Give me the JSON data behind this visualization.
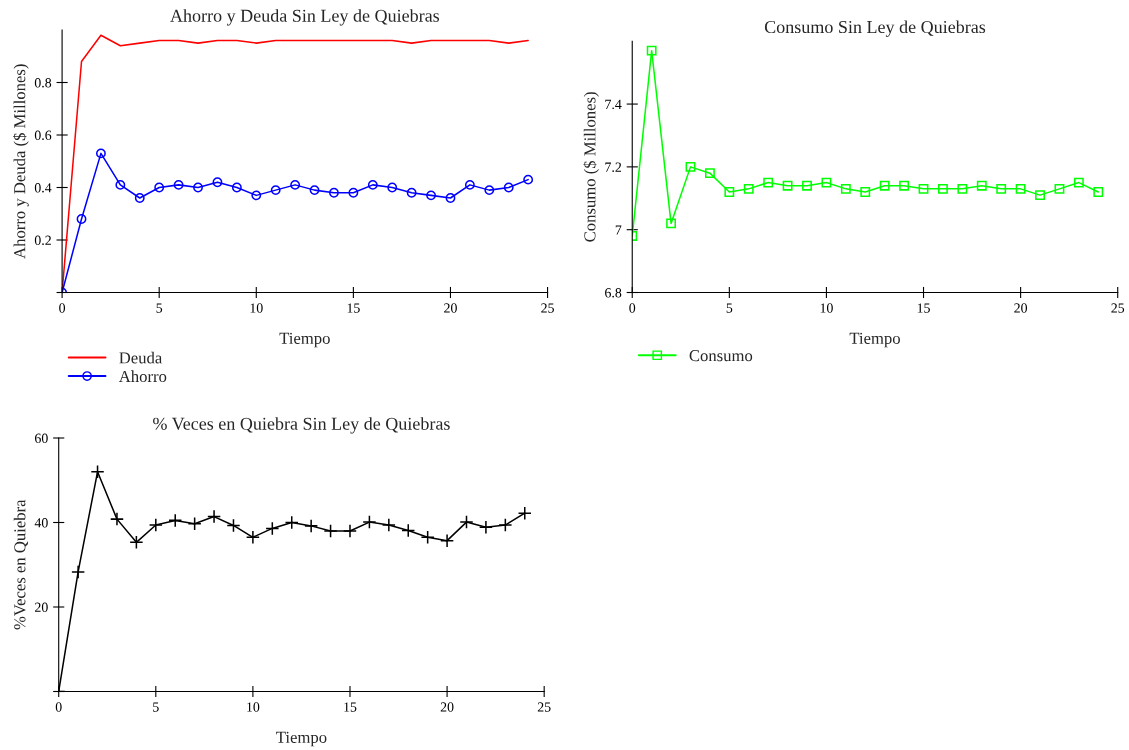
{
  "chart_data": [
    {
      "type": "line",
      "title": "Ahorro y Deuda Sin Ley de Quiebras",
      "xlabel": "Tiempo",
      "ylabel": "Ahorro y Deuda ($ Millones)",
      "x": [
        0,
        1,
        2,
        3,
        4,
        5,
        6,
        7,
        8,
        9,
        10,
        11,
        12,
        13,
        14,
        15,
        16,
        17,
        18,
        19,
        20,
        21,
        22,
        23,
        24
      ],
      "series": [
        {
          "name": "Deuda",
          "color": "#ff0000",
          "marker": "none",
          "values": [
            0,
            0.88,
            0.98,
            0.94,
            0.95,
            0.96,
            0.96,
            0.95,
            0.96,
            0.96,
            0.95,
            0.96,
            0.96,
            0.96,
            0.96,
            0.96,
            0.96,
            0.96,
            0.95,
            0.96,
            0.96,
            0.96,
            0.96,
            0.95,
            0.96
          ]
        },
        {
          "name": "Ahorro",
          "color": "#0000ff",
          "marker": "circle",
          "values": [
            0,
            0.28,
            0.53,
            0.41,
            0.36,
            0.4,
            0.41,
            0.4,
            0.42,
            0.4,
            0.37,
            0.39,
            0.41,
            0.39,
            0.38,
            0.38,
            0.41,
            0.4,
            0.38,
            0.37,
            0.36,
            0.41,
            0.39,
            0.4,
            0.43
          ]
        }
      ],
      "xlim": [
        0,
        25
      ],
      "xticks": [
        0,
        5,
        10,
        15,
        20,
        25
      ],
      "ylim": [
        0,
        1.0
      ],
      "yticks": [
        {
          "value": 0,
          "label": null
        },
        0.2,
        0.4,
        0.6,
        0.8
      ],
      "grid": false,
      "legend": "bottom"
    },
    {
      "type": "line",
      "title": "Consumo Sin Ley de Quiebras",
      "xlabel": "Tiempo",
      "ylabel": "Consumo ($ Millones)",
      "x": [
        0,
        1,
        2,
        3,
        4,
        5,
        6,
        7,
        8,
        9,
        10,
        11,
        12,
        13,
        14,
        15,
        16,
        17,
        18,
        19,
        20,
        21,
        22,
        23,
        24
      ],
      "series": [
        {
          "name": "Consumo",
          "color": "#00ff00",
          "marker": "square",
          "values": [
            6.98,
            7.57,
            7.02,
            7.2,
            7.18,
            7.12,
            7.13,
            7.15,
            7.14,
            7.14,
            7.15,
            7.13,
            7.12,
            7.14,
            7.14,
            7.13,
            7.13,
            7.13,
            7.14,
            7.13,
            7.13,
            7.11,
            7.13,
            7.15,
            7.12
          ]
        }
      ],
      "xlim": [
        0,
        25
      ],
      "xticks": [
        0,
        5,
        10,
        15,
        20,
        25
      ],
      "ylim": [
        6.8,
        7.6
      ],
      "yticks": [
        6.8,
        7,
        7.2,
        7.4
      ],
      "grid": false,
      "legend": "bottom"
    },
    {
      "type": "line",
      "title": "% Veces en Quiebra Sin Ley de Quiebras",
      "xlabel": "Tiempo",
      "ylabel": "%Veces en Quiebra",
      "x": [
        0,
        1,
        2,
        3,
        4,
        5,
        6,
        7,
        8,
        9,
        10,
        11,
        12,
        13,
        14,
        15,
        16,
        17,
        18,
        19,
        20,
        21,
        22,
        23,
        24
      ],
      "series": [
        {
          "color": "#000000",
          "marker": "cross",
          "values": [
            0,
            28.3,
            52.0,
            40.8,
            35.3,
            39.4,
            40.5,
            39.7,
            41.4,
            39.3,
            36.5,
            38.6,
            40.0,
            39.2,
            38.0,
            38.0,
            40.1,
            39.4,
            38.1,
            36.5,
            35.7,
            40.1,
            38.9,
            39.4,
            42.2
          ]
        }
      ],
      "xlim": [
        0,
        25
      ],
      "xticks": [
        0,
        5,
        10,
        15,
        20,
        25
      ],
      "ylim": [
        0,
        60
      ],
      "yticks": [
        {
          "value": 0,
          "label": null
        },
        20,
        40,
        60
      ],
      "grid": false
    }
  ]
}
